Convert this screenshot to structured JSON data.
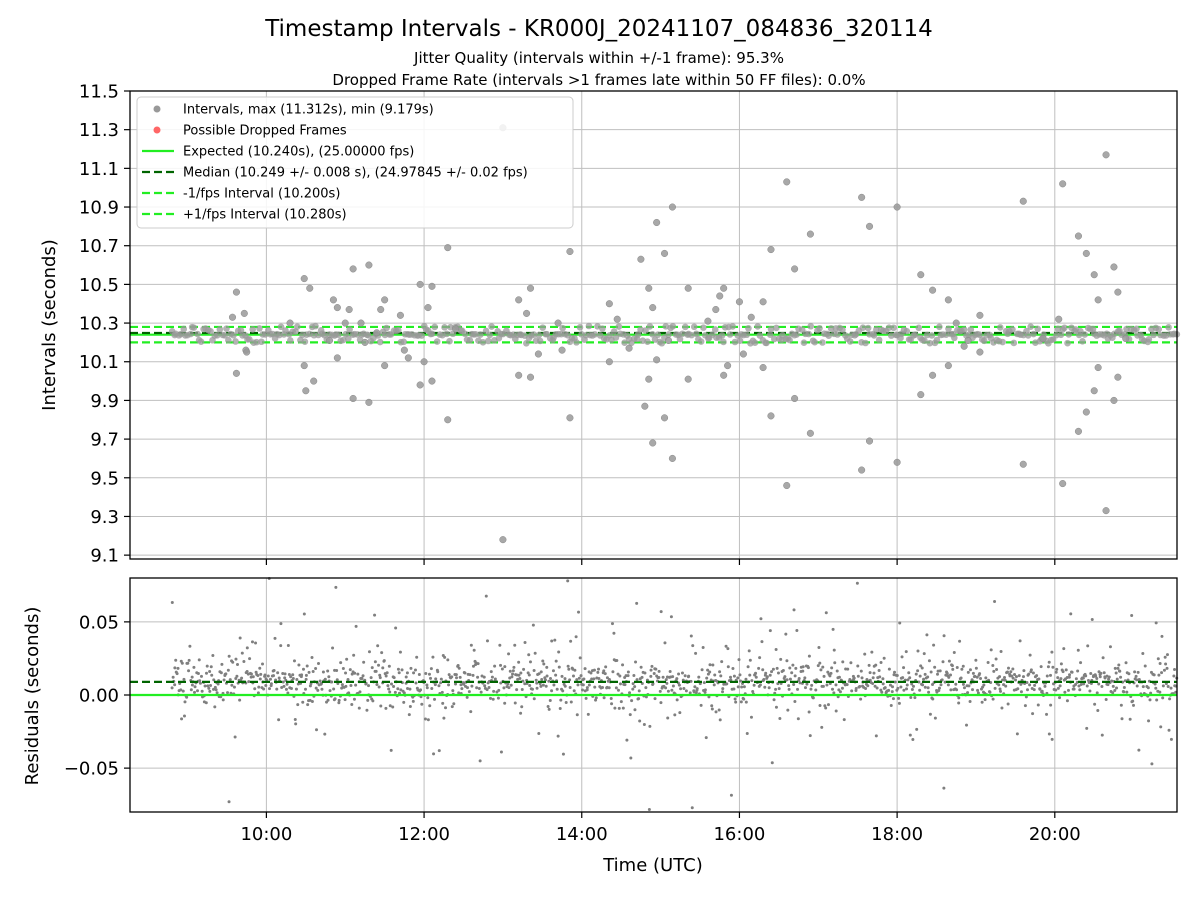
{
  "chart_data": {
    "title": "Timestamp Intervals - KR000J_20241107_084836_320114",
    "subtitle_lines": [
      "Jitter Quality (intervals within +/-1 frame): 95.3%",
      "Dropped Frame Rate (intervals >1 frames late within 50 FF files): 0.0%"
    ],
    "colors": {
      "intervals": "#999999",
      "dropped": "#ff6666",
      "expected": "#22ee22",
      "median": "#006400",
      "fps_band": "#22ee22",
      "residuals": "#7f7f7f",
      "grid": "#bfbfbf"
    },
    "panels": [
      {
        "id": "intervals",
        "type": "scatter",
        "ylabel": "Intervals (seconds)",
        "ylim": [
          9.08,
          11.5
        ],
        "xlim_hours": [
          8.27,
          21.55
        ],
        "y_ticks": [
          "9.1",
          "9.3",
          "9.5",
          "9.7",
          "9.9",
          "10.1",
          "10.3",
          "10.5",
          "10.7",
          "10.9",
          "11.1",
          "11.3",
          "11.5"
        ],
        "lines": [
          {
            "label": "Expected (10.240s), (25.00000 fps)",
            "y": 10.24,
            "style": "solid",
            "color_key": "expected"
          },
          {
            "label": "Median (10.249 +/- 0.008 s), (24.97845 +/- 0.02 fps)",
            "y": 10.249,
            "style": "dashed",
            "color_key": "median"
          },
          {
            "label": "-1/fps Interval (10.200s)",
            "y": 10.2,
            "style": "dashed",
            "color_key": "fps_band"
          },
          {
            "label": "+1/fps Interval (10.280s)",
            "y": 10.28,
            "style": "dashed",
            "color_key": "fps_band"
          }
        ],
        "legend": {
          "placement": "top-left",
          "entries": [
            {
              "label": "Intervals, max (11.312s), min (9.179s)",
              "kind": "marker",
              "color_key": "intervals"
            },
            {
              "label": "Possible Dropped Frames",
              "kind": "marker",
              "color_key": "dropped"
            },
            {
              "label": "Expected (10.240s), (25.00000 fps)",
              "kind": "solid",
              "color_key": "expected"
            },
            {
              "label": "Median (10.249 +/- 0.008 s), (24.97845 +/- 0.02 fps)",
              "kind": "dashed",
              "color_key": "median"
            },
            {
              "label": "-1/fps Interval (10.200s)",
              "kind": "dashed",
              "color_key": "fps_band"
            },
            {
              "label": "+1/fps Interval (10.280s)",
              "kind": "dashed",
              "color_key": "fps_band"
            }
          ]
        },
        "outliers": [
          [
            9.57,
            10.33
          ],
          [
            9.62,
            10.46
          ],
          [
            9.62,
            10.04
          ],
          [
            9.72,
            10.35
          ],
          [
            9.74,
            10.16
          ],
          [
            9.75,
            10.15
          ],
          [
            10.3,
            10.3
          ],
          [
            10.48,
            10.53
          ],
          [
            10.48,
            10.08
          ],
          [
            10.5,
            9.95
          ],
          [
            10.55,
            10.48
          ],
          [
            10.6,
            10.0
          ],
          [
            10.8,
            10.21
          ],
          [
            10.85,
            10.42
          ],
          [
            10.9,
            10.12
          ],
          [
            10.9,
            10.38
          ],
          [
            11.0,
            10.3
          ],
          [
            11.05,
            10.37
          ],
          [
            11.1,
            10.58
          ],
          [
            11.1,
            9.91
          ],
          [
            11.2,
            10.3
          ],
          [
            11.25,
            10.2
          ],
          [
            11.3,
            10.6
          ],
          [
            11.3,
            9.89
          ],
          [
            11.4,
            10.25
          ],
          [
            11.45,
            10.37
          ],
          [
            11.5,
            10.42
          ],
          [
            11.5,
            10.08
          ],
          [
            11.7,
            10.34
          ],
          [
            11.75,
            10.16
          ],
          [
            11.8,
            10.12
          ],
          [
            11.95,
            10.5
          ],
          [
            11.95,
            9.98
          ],
          [
            12.0,
            10.1
          ],
          [
            12.05,
            10.38
          ],
          [
            12.1,
            10.49
          ],
          [
            12.1,
            10.0
          ],
          [
            12.3,
            10.69
          ],
          [
            12.3,
            9.8
          ],
          [
            12.4,
            10.27
          ],
          [
            13.0,
            11.31
          ],
          [
            13.0,
            9.18
          ],
          [
            13.2,
            10.42
          ],
          [
            13.2,
            10.03
          ],
          [
            13.3,
            10.35
          ],
          [
            13.35,
            10.48
          ],
          [
            13.35,
            10.02
          ],
          [
            13.45,
            10.14
          ],
          [
            13.7,
            10.3
          ],
          [
            13.75,
            10.16
          ],
          [
            13.85,
            10.67
          ],
          [
            13.85,
            9.81
          ],
          [
            14.35,
            10.4
          ],
          [
            14.35,
            10.1
          ],
          [
            14.45,
            10.32
          ],
          [
            14.6,
            10.17
          ],
          [
            14.75,
            10.63
          ],
          [
            14.8,
            9.87
          ],
          [
            14.85,
            10.48
          ],
          [
            14.85,
            10.01
          ],
          [
            14.9,
            10.38
          ],
          [
            14.9,
            9.68
          ],
          [
            14.95,
            10.82
          ],
          [
            14.95,
            10.11
          ],
          [
            15.05,
            10.66
          ],
          [
            15.05,
            9.81
          ],
          [
            15.1,
            10.21
          ],
          [
            15.15,
            10.9
          ],
          [
            15.15,
            9.6
          ],
          [
            15.35,
            10.48
          ],
          [
            15.35,
            10.01
          ],
          [
            15.6,
            10.31
          ],
          [
            15.7,
            10.37
          ],
          [
            15.75,
            10.44
          ],
          [
            15.8,
            10.48
          ],
          [
            15.8,
            10.03
          ],
          [
            15.85,
            10.08
          ],
          [
            16.0,
            10.41
          ],
          [
            16.05,
            10.14
          ],
          [
            16.15,
            10.33
          ],
          [
            16.3,
            10.41
          ],
          [
            16.3,
            10.07
          ],
          [
            16.4,
            10.68
          ],
          [
            16.4,
            9.82
          ],
          [
            16.6,
            11.03
          ],
          [
            16.6,
            9.46
          ],
          [
            16.7,
            10.58
          ],
          [
            16.7,
            9.91
          ],
          [
            16.9,
            10.76
          ],
          [
            16.9,
            9.73
          ],
          [
            17.55,
            10.95
          ],
          [
            17.55,
            9.54
          ],
          [
            17.65,
            10.8
          ],
          [
            17.65,
            9.69
          ],
          [
            18.0,
            10.9
          ],
          [
            18.0,
            9.58
          ],
          [
            18.3,
            10.55
          ],
          [
            18.3,
            9.93
          ],
          [
            18.45,
            10.47
          ],
          [
            18.45,
            10.03
          ],
          [
            18.65,
            10.42
          ],
          [
            18.65,
            10.08
          ],
          [
            18.75,
            10.3
          ],
          [
            18.85,
            10.18
          ],
          [
            18.9,
            10.21
          ],
          [
            19.05,
            10.34
          ],
          [
            19.05,
            10.15
          ],
          [
            19.6,
            10.93
          ],
          [
            19.6,
            9.57
          ],
          [
            19.85,
            10.22
          ],
          [
            20.05,
            10.32
          ],
          [
            20.1,
            11.02
          ],
          [
            20.1,
            9.47
          ],
          [
            20.3,
            10.75
          ],
          [
            20.3,
            9.74
          ],
          [
            20.4,
            10.66
          ],
          [
            20.4,
            9.84
          ],
          [
            20.5,
            10.55
          ],
          [
            20.5,
            9.95
          ],
          [
            20.55,
            10.42
          ],
          [
            20.55,
            10.07
          ],
          [
            20.65,
            11.17
          ],
          [
            20.65,
            9.33
          ],
          [
            20.75,
            10.59
          ],
          [
            20.75,
            9.9
          ],
          [
            20.8,
            10.46
          ],
          [
            20.8,
            10.02
          ],
          [
            20.9,
            10.22
          ]
        ]
      },
      {
        "id": "residuals",
        "type": "scatter",
        "ylabel": "Residuals (seconds)",
        "xlabel": "Time (UTC)",
        "ylim": [
          -0.08,
          0.08
        ],
        "xlim_hours": [
          8.27,
          21.55
        ],
        "x_ticks": [
          {
            "value": 10,
            "label": "10:00"
          },
          {
            "value": 12,
            "label": "12:00"
          },
          {
            "value": 14,
            "label": "14:00"
          },
          {
            "value": 16,
            "label": "16:00"
          },
          {
            "value": 18,
            "label": "18:00"
          },
          {
            "value": 20,
            "label": "20:00"
          }
        ],
        "y_ticks": [
          {
            "value": 0.05,
            "label": "0.05"
          },
          {
            "value": 0.0,
            "label": "0.00"
          },
          {
            "value": -0.05,
            "label": "−0.05"
          }
        ],
        "lines": [
          {
            "y": 0.0,
            "style": "solid",
            "color_key": "expected"
          },
          {
            "y": 0.009,
            "style": "dashed",
            "color_key": "median"
          }
        ]
      }
    ]
  }
}
